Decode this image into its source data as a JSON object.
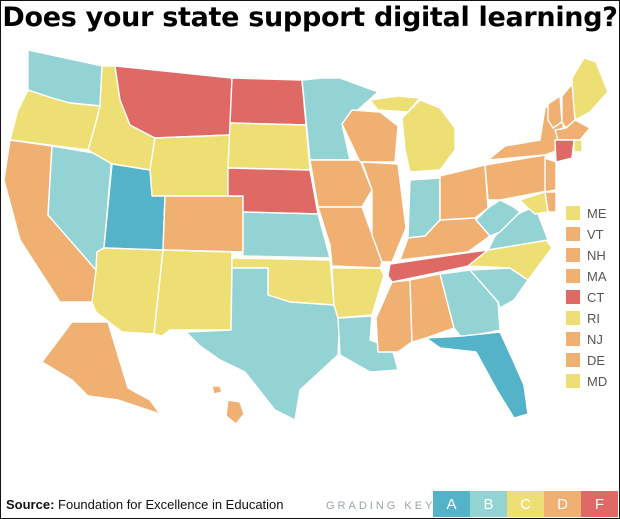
{
  "title": "Does your state support digital learning?",
  "footer": {
    "source_label": "Source:",
    "source_text": "Foundation for Excellence in Education",
    "key_label": "GRADING KEY:"
  },
  "colors": {
    "A": "#54b3c8",
    "B": "#94d3d4",
    "C": "#eedf74",
    "D": "#efb071",
    "F": "#df6a65"
  },
  "grading_key": [
    "A",
    "B",
    "C",
    "D",
    "F"
  ],
  "state_grades": {
    "WA": "B",
    "OR": "C",
    "CA": "D",
    "NV": "B",
    "ID": "C",
    "MT": "F",
    "WY": "C",
    "UT": "A",
    "AZ": "C",
    "CO": "D",
    "NM": "C",
    "ND": "F",
    "SD": "C",
    "NE": "F",
    "KS": "B",
    "OK": "C",
    "TX": "B",
    "MN": "B",
    "IA": "D",
    "MO": "D",
    "AR": "C",
    "LA": "B",
    "WI": "D",
    "IL": "D",
    "MI": "C",
    "IN": "B",
    "OH": "D",
    "KY": "D",
    "TN": "F",
    "MS": "D",
    "AL": "D",
    "GA": "B",
    "FL": "A",
    "SC": "B",
    "NC": "C",
    "VA": "B",
    "WV": "B",
    "PA": "D",
    "NY": "D",
    "AK": "D",
    "HI": "D"
  },
  "small_states": [
    {
      "code": "ME",
      "grade": "C"
    },
    {
      "code": "VT",
      "grade": "D"
    },
    {
      "code": "NH",
      "grade": "D"
    },
    {
      "code": "MA",
      "grade": "D"
    },
    {
      "code": "CT",
      "grade": "F"
    },
    {
      "code": "RI",
      "grade": "C"
    },
    {
      "code": "NJ",
      "grade": "D"
    },
    {
      "code": "DE",
      "grade": "D"
    },
    {
      "code": "MD",
      "grade": "C"
    }
  ]
}
